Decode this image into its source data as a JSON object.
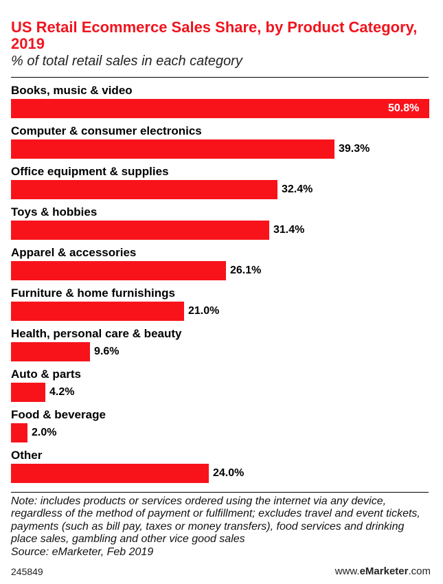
{
  "chart_data": {
    "type": "bar",
    "orientation": "horizontal",
    "title": "US Retail Ecommerce Sales Share, by Product Category, 2019",
    "subtitle": "% of total retail sales in each category",
    "categories": [
      "Books, music & video",
      "Computer & consumer electronics",
      "Office equipment & supplies",
      "Toys & hobbies",
      "Apparel & accessories",
      "Furniture & home furnishings",
      "Health, personal care & beauty",
      "Auto & parts",
      "Food & beverage",
      "Other"
    ],
    "values": [
      50.8,
      39.3,
      32.4,
      31.4,
      26.1,
      21.0,
      9.6,
      4.2,
      2.0,
      24.0
    ],
    "value_labels": [
      "50.8%",
      "39.3%",
      "32.4%",
      "31.4%",
      "26.1%",
      "21.0%",
      "9.6%",
      "4.2%",
      "2.0%",
      "24.0%"
    ],
    "xlim": [
      0,
      50.8
    ],
    "bar_color": "#f8131b",
    "title_color": "#f0141e"
  },
  "footer": {
    "note": "Note: includes products or services ordered using the internet via any device, regardless of the method of payment or fulfillment; excludes travel and event tickets, payments (such as bill pay, taxes or money transfers), food services and drinking place sales, gambling and other vice good sales",
    "source": "Source: eMarketer, Feb 2019",
    "chart_id": "245849",
    "brand_prefix": "www.",
    "brand_name": "eMarketer",
    "brand_suffix": ".com"
  }
}
